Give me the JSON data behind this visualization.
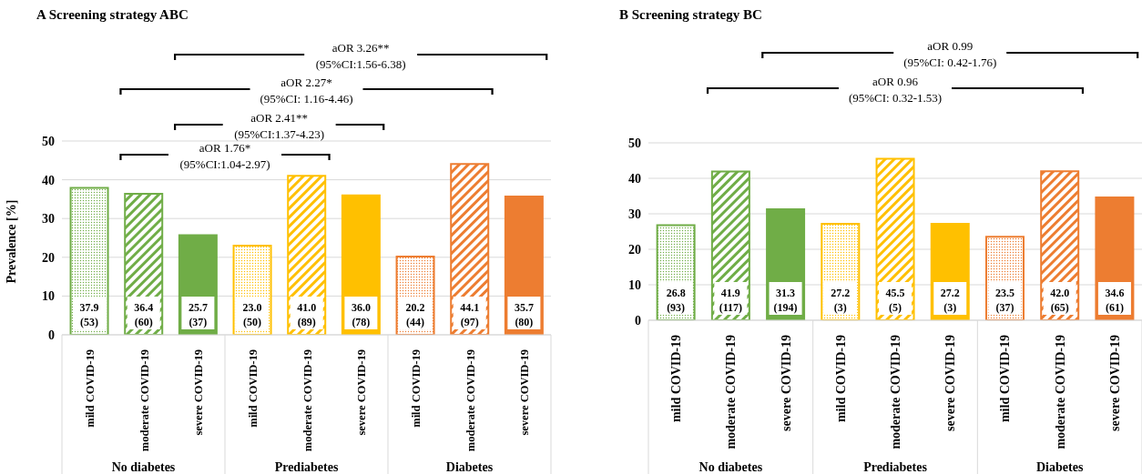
{
  "chart_data": [
    {
      "type": "bar",
      "title": "A Screening strategy ABC",
      "ylabel": "Prevalence [%]",
      "categories": [
        "mild COVID-19",
        "moderate COVID-19",
        "severe COVID-19",
        "mild COVID-19",
        "moderate COVID-19",
        "severe COVID-19",
        "mild COVID-19",
        "moderate COVID-19",
        "severe COVID-19"
      ],
      "values": [
        37.9,
        36.4,
        25.7,
        23.0,
        41.0,
        36.0,
        20.2,
        44.1,
        35.7
      ],
      "value_labels": [
        "37.9 (53)",
        "36.4 (60)",
        "25.7 (37)",
        "23.0 (50)",
        "41.0 (89)",
        "36.0 (78)",
        "20.2 (44)",
        "44.1 (97)",
        "35.7 (80)"
      ],
      "colors": [
        "#70ad47",
        "#70ad47",
        "#70ad47",
        "#ffc000",
        "#ffc000",
        "#ffc000",
        "#ed7d31",
        "#ed7d31",
        "#ed7d31"
      ],
      "ylim": [
        0,
        50
      ],
      "yticks": [
        0,
        10,
        20,
        30,
        40,
        50
      ],
      "grid": "y",
      "legend": false,
      "annotations": [
        "No diabetes",
        "Prediabetes",
        "Diabetes",
        "aOR 3.26**\n(95%CI:1.56-6.38)",
        "aOR 2.27*\n(95%CI: 1.16-4.46)",
        "aOR 2.41**\n(95%CI:1.37-4.23)",
        "aOR 1.76*\n(95%CI:1.04-2.97)"
      ]
    },
    {
      "type": "bar",
      "title": "B Screening strategy BC",
      "categories": [
        "mild COVID-19",
        "moderate COVID-19",
        "severe COVID-19",
        "mild COVID-19",
        "moderate COVID-19",
        "severe COVID-19",
        "mild COVID-19",
        "moderate COVID-19",
        "severe COVID-19"
      ],
      "values": [
        26.8,
        41.9,
        31.3,
        27.2,
        45.5,
        27.2,
        23.5,
        42.0,
        34.6
      ],
      "value_labels": [
        "26.8 (93)",
        "41.9 (117)",
        "31.3 (194)",
        "27.2 (3)",
        "45.5 (5)",
        "27.2 (3)",
        "23.5 (37)",
        "42.0 (65)",
        "34.6 (61)"
      ],
      "colors": [
        "#70ad47",
        "#70ad47",
        "#70ad47",
        "#ffc000",
        "#ffc000",
        "#ffc000",
        "#ed7d31",
        "#ed7d31",
        "#ed7d31"
      ],
      "ylim": [
        0,
        50
      ],
      "yticks": [
        0,
        10,
        20,
        30,
        40,
        50
      ],
      "grid": "y",
      "legend": false,
      "annotations": [
        "No diabetes",
        "Prediabetes",
        "Diabetes",
        "aOR 0.99\n(95%CI: 0.42-1.76)",
        "aOR 0.96\n(95%CI: 0.32-1.53)"
      ]
    }
  ]
}
